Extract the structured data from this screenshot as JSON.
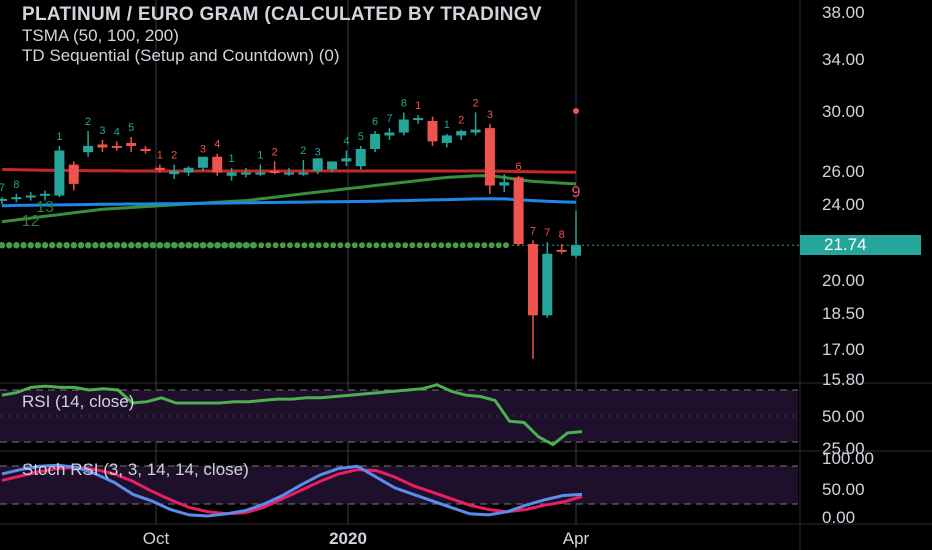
{
  "header": {
    "title": "PLATINUM / EURO GRAM (CALCULATED BY TRADINGV",
    "study1": "TSMA (50, 100, 200)",
    "study2": "TD Sequential (Setup and Countdown) (0)"
  },
  "colors": {
    "background": "#000000",
    "up": "#26a69a",
    "down": "#ef5350",
    "ma50": "#388e3c",
    "ma100": "#1e88e5",
    "ma200": "#c62828",
    "rsi": "#4caf50",
    "stoch_k": "#5b8def",
    "stoch_d": "#e91e63",
    "band": "#1e0f2a"
  },
  "chart_data": [
    {
      "type": "candlestick",
      "title": "PLATINUM / EURO GRAM (CALCULATED BY TRADINGV",
      "y_ticks": [
        "38.00",
        "34.00",
        "30.00",
        "26.00",
        "24.00",
        "21.74",
        "20.00",
        "18.50",
        "17.00",
        "15.80"
      ],
      "ylim": [
        15.8,
        38
      ],
      "last_price": "21.74",
      "x_ticks": [
        "Oct",
        "2020",
        "Apr"
      ],
      "grid": false,
      "candles": [
        {
          "o": 24.2,
          "h": 24.4,
          "l": 24.0,
          "c": 24.3
        },
        {
          "o": 24.3,
          "h": 24.6,
          "l": 24.1,
          "c": 24.4
        },
        {
          "o": 24.4,
          "h": 24.7,
          "l": 24.2,
          "c": 24.5
        },
        {
          "o": 24.5,
          "h": 24.8,
          "l": 24.2,
          "c": 24.6
        },
        {
          "o": 24.5,
          "h": 27.6,
          "l": 24.4,
          "c": 27.3
        },
        {
          "o": 26.4,
          "h": 26.6,
          "l": 24.8,
          "c": 25.2
        },
        {
          "o": 27.2,
          "h": 28.6,
          "l": 26.9,
          "c": 27.6
        },
        {
          "o": 27.7,
          "h": 28.0,
          "l": 27.2,
          "c": 27.5
        },
        {
          "o": 27.6,
          "h": 27.9,
          "l": 27.3,
          "c": 27.5
        },
        {
          "o": 27.8,
          "h": 28.2,
          "l": 27.2,
          "c": 27.6
        },
        {
          "o": 27.4,
          "h": 27.6,
          "l": 27.1,
          "c": 27.3
        },
        {
          "o": 26.2,
          "h": 26.4,
          "l": 25.9,
          "c": 26.1
        },
        {
          "o": 25.8,
          "h": 26.4,
          "l": 25.5,
          "c": 26.0
        },
        {
          "o": 25.9,
          "h": 26.3,
          "l": 25.7,
          "c": 26.2
        },
        {
          "o": 26.2,
          "h": 26.8,
          "l": 26.0,
          "c": 26.9
        },
        {
          "o": 26.9,
          "h": 27.1,
          "l": 25.7,
          "c": 25.9
        },
        {
          "o": 25.7,
          "h": 26.2,
          "l": 25.4,
          "c": 25.9
        },
        {
          "o": 25.8,
          "h": 26.2,
          "l": 25.6,
          "c": 25.9
        },
        {
          "o": 25.9,
          "h": 26.4,
          "l": 25.7,
          "c": 25.9
        },
        {
          "o": 26.0,
          "h": 26.6,
          "l": 25.8,
          "c": 25.9
        },
        {
          "o": 25.9,
          "h": 26.2,
          "l": 25.7,
          "c": 25.9
        },
        {
          "o": 25.9,
          "h": 26.7,
          "l": 25.7,
          "c": 25.9
        },
        {
          "o": 26.0,
          "h": 26.6,
          "l": 25.8,
          "c": 26.8
        },
        {
          "o": 26.1,
          "h": 26.6,
          "l": 25.9,
          "c": 26.6
        },
        {
          "o": 26.6,
          "h": 27.3,
          "l": 26.3,
          "c": 26.8
        },
        {
          "o": 26.3,
          "h": 27.6,
          "l": 26.1,
          "c": 27.4
        },
        {
          "o": 27.4,
          "h": 28.6,
          "l": 27.2,
          "c": 28.4
        },
        {
          "o": 28.3,
          "h": 28.8,
          "l": 28.0,
          "c": 28.5
        },
        {
          "o": 28.5,
          "h": 29.9,
          "l": 28.3,
          "c": 29.4
        },
        {
          "o": 29.4,
          "h": 29.7,
          "l": 29.1,
          "c": 29.5
        },
        {
          "o": 29.3,
          "h": 29.6,
          "l": 27.6,
          "c": 27.9
        },
        {
          "o": 27.8,
          "h": 28.4,
          "l": 27.5,
          "c": 28.3
        },
        {
          "o": 28.3,
          "h": 28.7,
          "l": 28.0,
          "c": 28.6
        },
        {
          "o": 28.5,
          "h": 29.9,
          "l": 28.3,
          "c": 28.7
        },
        {
          "o": 28.8,
          "h": 29.1,
          "l": 24.6,
          "c": 25.1
        },
        {
          "o": 25.1,
          "h": 25.8,
          "l": 24.7,
          "c": 25.3
        },
        {
          "o": 25.6,
          "h": 25.7,
          "l": 21.7,
          "c": 21.8
        },
        {
          "o": 21.8,
          "h": 22.0,
          "l": 16.6,
          "c": 18.4
        },
        {
          "o": 18.4,
          "h": 21.9,
          "l": 18.3,
          "c": 21.3
        },
        {
          "o": 21.5,
          "h": 21.8,
          "l": 21.3,
          "c": 21.4
        },
        {
          "o": 21.2,
          "h": 23.6,
          "l": 21.1,
          "c": 21.74
        }
      ],
      "setup_labels": [
        {
          "i": 0,
          "t": "7",
          "pos": "above",
          "color": "up"
        },
        {
          "i": 1,
          "t": "8",
          "pos": "above",
          "color": "up"
        },
        {
          "i": 4,
          "t": "1",
          "pos": "above",
          "color": "up"
        },
        {
          "i": 6,
          "t": "2",
          "pos": "above",
          "color": "up"
        },
        {
          "i": 7,
          "t": "3",
          "pos": "above",
          "color": "up"
        },
        {
          "i": 8,
          "t": "4",
          "pos": "above",
          "color": "up"
        },
        {
          "i": 9,
          "t": "5",
          "pos": "above",
          "color": "up"
        },
        {
          "i": 11,
          "t": "1",
          "pos": "above",
          "color": "down"
        },
        {
          "i": 12,
          "t": "2",
          "pos": "above",
          "color": "down"
        },
        {
          "i": 14,
          "t": "3",
          "pos": "above",
          "color": "down"
        },
        {
          "i": 15,
          "t": "4",
          "pos": "above",
          "color": "down"
        },
        {
          "i": 16,
          "t": "1",
          "pos": "above",
          "color": "up"
        },
        {
          "i": 18,
          "t": "1",
          "pos": "above",
          "color": "up"
        },
        {
          "i": 19,
          "t": "2",
          "pos": "above",
          "color": "down"
        },
        {
          "i": 21,
          "t": "2",
          "pos": "above",
          "color": "up"
        },
        {
          "i": 22,
          "t": "3",
          "pos": "above",
          "color": "up"
        },
        {
          "i": 24,
          "t": "4",
          "pos": "above",
          "color": "up"
        },
        {
          "i": 25,
          "t": "5",
          "pos": "above",
          "color": "up"
        },
        {
          "i": 26,
          "t": "6",
          "pos": "above",
          "color": "up"
        },
        {
          "i": 27,
          "t": "7",
          "pos": "above",
          "color": "up"
        },
        {
          "i": 28,
          "t": "8",
          "pos": "above",
          "color": "up"
        },
        {
          "i": 29,
          "t": "1",
          "pos": "above",
          "color": "down"
        },
        {
          "i": 31,
          "t": "1",
          "pos": "above",
          "color": "up"
        },
        {
          "i": 32,
          "t": "2",
          "pos": "above",
          "color": "down"
        },
        {
          "i": 33,
          "t": "2",
          "pos": "above",
          "color": "down"
        },
        {
          "i": 34,
          "t": "3",
          "pos": "above",
          "color": "down"
        },
        {
          "i": 36,
          "t": "6",
          "pos": "above",
          "color": "down"
        },
        {
          "i": 37,
          "t": "7",
          "pos": "above",
          "color": "down"
        },
        {
          "i": 38,
          "t": "7",
          "pos": "above",
          "color": "down"
        },
        {
          "i": 39,
          "t": "8",
          "pos": "above",
          "color": "down"
        }
      ],
      "countdown_labels": [
        {
          "i": 3,
          "t": "13",
          "color": "ma50"
        },
        {
          "i": 2,
          "t": "12",
          "color": "ma50"
        },
        {
          "i": 40,
          "t": "9",
          "color": "down"
        }
      ],
      "ma50": [
        23.0,
        23.1,
        23.2,
        23.3,
        23.4,
        23.5,
        23.6,
        23.7,
        23.75,
        23.8,
        23.85,
        23.9,
        23.95,
        24.0,
        24.05,
        24.1,
        24.15,
        24.2,
        24.3,
        24.4,
        24.5,
        24.6,
        24.7,
        24.8,
        24.9,
        25.0,
        25.1,
        25.2,
        25.3,
        25.4,
        25.5,
        25.6,
        25.65,
        25.7,
        25.7,
        25.6,
        25.45,
        25.35,
        25.3,
        25.25,
        25.2
      ],
      "ma100": [
        23.9,
        23.92,
        23.93,
        23.94,
        23.95,
        23.96,
        23.97,
        23.98,
        23.99,
        24.0,
        24.0,
        24.01,
        24.02,
        24.03,
        24.04,
        24.05,
        24.06,
        24.07,
        24.08,
        24.09,
        24.1,
        24.11,
        24.12,
        24.13,
        24.14,
        24.15,
        24.16,
        24.18,
        24.2,
        24.22,
        24.24,
        24.26,
        24.28,
        24.3,
        24.31,
        24.3,
        24.25,
        24.2,
        24.16,
        24.12,
        24.1
      ],
      "ma200": [
        26.1,
        26.08,
        26.06,
        26.05,
        26.04,
        26.03,
        26.02,
        26.02,
        26.01,
        26.0,
        26.0,
        26.0,
        26.0,
        26.0,
        26.0,
        26.0,
        26.0,
        26.0,
        26.0,
        26.0,
        26.0,
        26.0,
        26.0,
        26.0,
        26.0,
        26.0,
        26.0,
        26.0,
        26.0,
        26.0,
        26.0,
        26.0,
        26.0,
        26.0,
        26.0,
        25.98,
        25.96,
        25.95,
        25.94,
        25.93,
        25.92
      ],
      "support_dots_value": 21.74
    },
    {
      "type": "line",
      "title": "RSI (14, close)",
      "y_ticks": [
        "50.00",
        "25.00"
      ],
      "ylim": [
        15,
        80
      ],
      "band": [
        30,
        70
      ],
      "series": [
        {
          "name": "RSI (14, close)",
          "values": [
            66,
            68,
            72,
            73,
            72,
            72,
            70,
            71,
            70,
            60,
            61,
            64,
            60,
            60,
            60,
            60,
            61,
            61,
            62,
            63,
            63,
            64,
            64,
            65,
            66,
            67,
            68,
            69,
            70,
            71,
            74,
            69,
            66,
            65,
            62,
            46,
            45,
            34,
            28,
            37,
            38
          ]
        }
      ]
    },
    {
      "type": "line",
      "title": "Stoch RSI (3, 3, 14, 14, close)",
      "y_ticks": [
        "100.00",
        "50.00",
        "0.00"
      ],
      "ylim": [
        -5,
        110
      ],
      "band": [
        20,
        80
      ],
      "series": [
        {
          "name": "K",
          "values": [
            78,
            86,
            92,
            94,
            90,
            78,
            62,
            40,
            28,
            12,
            2,
            0,
            4,
            10,
            22,
            38,
            58,
            76,
            88,
            92,
            72,
            52,
            40,
            28,
            16,
            4,
            2,
            8,
            20,
            30,
            38,
            40
          ]
        },
        {
          "name": "D",
          "values": [
            66,
            74,
            82,
            88,
            90,
            86,
            78,
            64,
            46,
            30,
            16,
            8,
            4,
            6,
            16,
            32,
            48,
            64,
            78,
            86,
            84,
            72,
            56,
            44,
            32,
            20,
            12,
            8,
            12,
            20,
            26,
            36
          ]
        }
      ]
    }
  ]
}
